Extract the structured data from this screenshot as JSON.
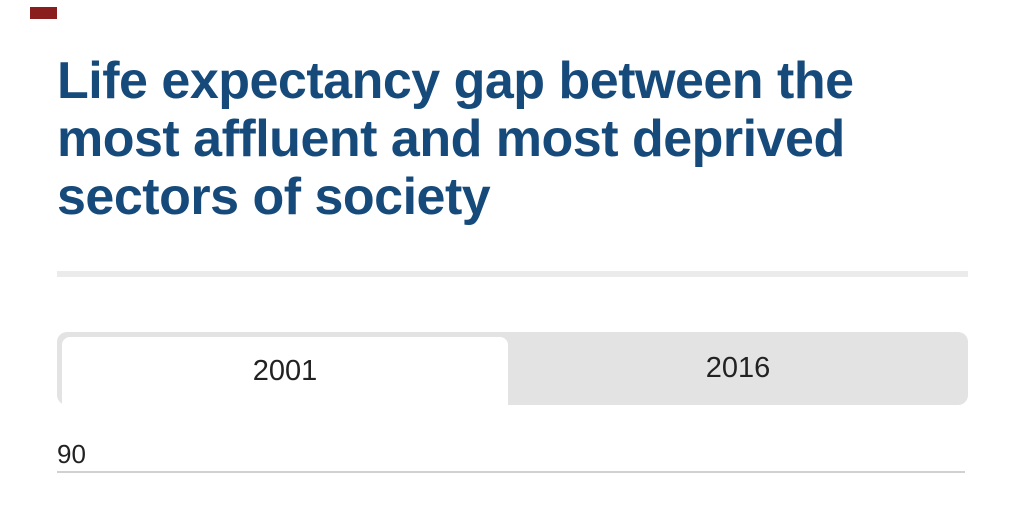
{
  "page": {
    "background": "#ffffff",
    "red_mark_color": "#8a1e1e"
  },
  "header": {
    "title_lines": [
      "Life expectancy gap between the",
      "most affluent and most deprived",
      "sectors of society"
    ],
    "title_full": "Life expectancy gap between the most affluent and most deprived sectors of society",
    "title_color": "#164a7a"
  },
  "tabs": {
    "items": [
      {
        "label": "2001",
        "active": true
      },
      {
        "label": "2016",
        "active": false
      }
    ],
    "strip_color": "#e3e3e3",
    "active_tab_bg": "#ffffff",
    "label_color": "#222222"
  },
  "chart": {
    "first_y_tick": "90",
    "gridline_color": "#d1d1d1",
    "divider_color": "#ebebeb"
  },
  "chart_data": {
    "type": "line",
    "title": "Life expectancy gap between the most affluent and most deprived sectors of society",
    "tabs": [
      "2001",
      "2016"
    ],
    "selected_tab": "2001",
    "visible_y_ticks": [
      90
    ],
    "ylim_top": 90,
    "grid": true,
    "legend_position": "none-visible",
    "series": []
  }
}
